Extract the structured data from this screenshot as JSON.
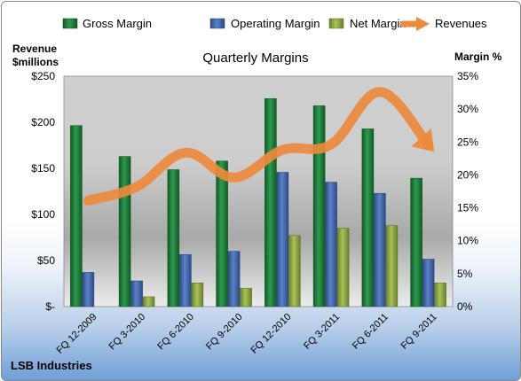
{
  "chart_data": {
    "type": "bar",
    "title": "Quarterly Margins",
    "left_axis_label_line1": "Revenue",
    "left_axis_label_line2": "$millions",
    "right_axis_label": "Margin %",
    "footer_label": "LSB Industries",
    "categories": [
      "FQ 12-2009",
      "FQ 3-2010",
      "FQ 6-2010",
      "FQ 9-2010",
      "FQ 12-2010",
      "FQ 3-2011",
      "FQ 6-2011",
      "FQ 9-2011"
    ],
    "left_ticks": [
      "$-",
      "$50",
      "$100",
      "$150",
      "$200",
      "$250"
    ],
    "right_ticks": [
      "0%",
      "5%",
      "10%",
      "15%",
      "20%",
      "25%",
      "30%",
      "35%"
    ],
    "left_ylim": [
      0,
      250
    ],
    "right_ylim": [
      0,
      35
    ],
    "grid": false,
    "legend_position": "top",
    "series": [
      {
        "name": "Gross Margin",
        "axis": "right",
        "type": "bar",
        "color": "#1e7a3a",
        "values": [
          27.5,
          22.8,
          20.8,
          22.1,
          31.6,
          30.5,
          27.0,
          19.5
        ]
      },
      {
        "name": "Operating Margin",
        "axis": "right",
        "type": "bar",
        "color": "#3f63a8",
        "values": [
          5.2,
          3.9,
          7.9,
          8.4,
          20.4,
          18.9,
          17.2,
          7.2
        ]
      },
      {
        "name": "Net Margin",
        "axis": "right",
        "type": "bar",
        "color": "#8fa743",
        "values": [
          0,
          1.5,
          3.6,
          2.8,
          10.8,
          11.9,
          12.3,
          3.6
        ]
      },
      {
        "name": "Revenues",
        "axis": "left",
        "type": "line",
        "color": "#ec8a3c",
        "values": [
          115,
          130,
          167,
          140,
          170,
          176,
          233,
          175
        ]
      }
    ]
  }
}
